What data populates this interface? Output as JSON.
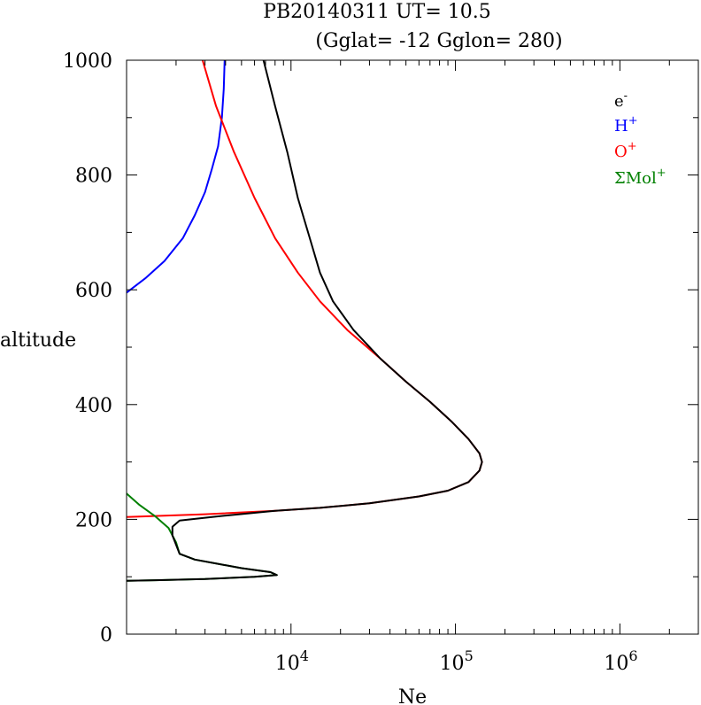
{
  "chart_data": {
    "type": "line",
    "title_line1": "PB20140311   UT=  10.5",
    "title_line2": "(Gglat= -12   Gglon=  280)",
    "xlabel": "Ne",
    "ylabel": "altitude",
    "x_scale": "log",
    "xlim": [
      1000,
      3000000
    ],
    "ylim": [
      0,
      1000
    ],
    "x_ticks": [
      10000,
      100000,
      1000000
    ],
    "x_tick_labels": [
      {
        "base": "10",
        "exp": "4"
      },
      {
        "base": "10",
        "exp": "5"
      },
      {
        "base": "10",
        "exp": "6"
      }
    ],
    "y_ticks": [
      0,
      200,
      400,
      600,
      800,
      1000
    ],
    "y_tick_labels": [
      "0",
      "200",
      "400",
      "600",
      "800",
      "1000"
    ],
    "legend_position": "top-right",
    "legend": [
      {
        "base": "e",
        "sup": "-",
        "color": "#000000"
      },
      {
        "base": "H",
        "sup": "+",
        "color": "#0000ff"
      },
      {
        "base": "O",
        "sup": "+",
        "color": "#ff0000"
      },
      {
        "base": "ΣMol",
        "sup": "+",
        "color": "#008000"
      }
    ],
    "series": [
      {
        "color": "#0000ff",
        "points": [
          [
            1000,
            595
          ],
          [
            1300,
            620
          ],
          [
            1700,
            650
          ],
          [
            2200,
            690
          ],
          [
            2600,
            730
          ],
          [
            3000,
            770
          ],
          [
            3300,
            810
          ],
          [
            3600,
            850
          ],
          [
            3800,
            900
          ],
          [
            3900,
            950
          ],
          [
            3950,
            1000
          ]
        ]
      },
      {
        "color": "#ff0000",
        "points": [
          [
            1000,
            204
          ],
          [
            3000,
            209
          ],
          [
            8000,
            215
          ],
          [
            15000,
            220
          ],
          [
            30000,
            228
          ],
          [
            60000,
            240
          ],
          [
            90000,
            250
          ],
          [
            120000,
            265
          ],
          [
            140000,
            285
          ],
          [
            145000,
            300
          ],
          [
            140000,
            315
          ],
          [
            120000,
            340
          ],
          [
            95000,
            370
          ],
          [
            70000,
            405
          ],
          [
            50000,
            440
          ],
          [
            35000,
            480
          ],
          [
            22000,
            530
          ],
          [
            15000,
            580
          ],
          [
            11000,
            630
          ],
          [
            8000,
            690
          ],
          [
            6000,
            760
          ],
          [
            4500,
            840
          ],
          [
            3500,
            920
          ],
          [
            2900,
            1000
          ]
        ]
      },
      {
        "color": "#008000",
        "points": [
          [
            1000,
            245
          ],
          [
            1200,
            225
          ],
          [
            1500,
            205
          ],
          [
            1800,
            185
          ],
          [
            2000,
            160
          ],
          [
            2100,
            140
          ],
          [
            2600,
            130
          ],
          [
            5000,
            115
          ],
          [
            7500,
            108
          ],
          [
            8200,
            103
          ],
          [
            6000,
            100
          ],
          [
            3000,
            96
          ],
          [
            1500,
            94
          ],
          [
            1000,
            93
          ]
        ]
      },
      {
        "color": "#000000",
        "points": [
          [
            1000,
            93
          ],
          [
            1500,
            94
          ],
          [
            3000,
            96
          ],
          [
            6000,
            100
          ],
          [
            8200,
            103
          ],
          [
            7500,
            108
          ],
          [
            5000,
            115
          ],
          [
            2600,
            130
          ],
          [
            2100,
            140
          ],
          [
            1900,
            172
          ],
          [
            1900,
            187
          ],
          [
            2100,
            198
          ],
          [
            3500,
            205
          ],
          [
            8000,
            215
          ],
          [
            15000,
            220
          ],
          [
            30000,
            228
          ],
          [
            60000,
            240
          ],
          [
            90000,
            250
          ],
          [
            120000,
            265
          ],
          [
            140000,
            285
          ],
          [
            145000,
            300
          ],
          [
            140000,
            315
          ],
          [
            120000,
            340
          ],
          [
            95000,
            370
          ],
          [
            70000,
            405
          ],
          [
            50000,
            440
          ],
          [
            35000,
            480
          ],
          [
            24000,
            530
          ],
          [
            18000,
            580
          ],
          [
            15000,
            630
          ],
          [
            13000,
            690
          ],
          [
            11000,
            760
          ],
          [
            9500,
            840
          ],
          [
            8000,
            920
          ],
          [
            6800,
            1000
          ]
        ]
      }
    ]
  }
}
